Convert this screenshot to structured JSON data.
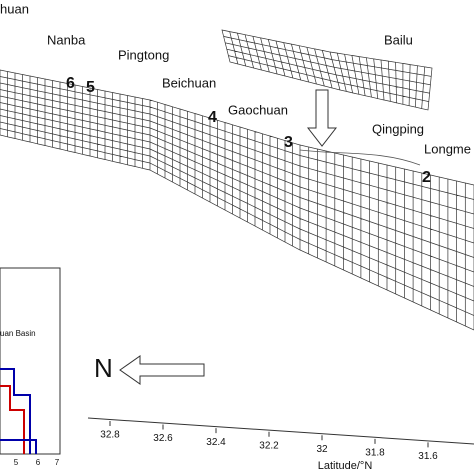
{
  "title_fragment": "huan",
  "fault_labels": [
    "Nanba",
    "Pingtong",
    "Beichuan",
    "Bailu",
    "Gaochuan",
    "Qingping",
    "Longme"
  ],
  "segment_numbers": [
    "6",
    "5",
    "4",
    "3",
    "2"
  ],
  "north_label": "N",
  "inset": {
    "label": "uan Basin",
    "x_ticks": [
      "5",
      "6",
      "7"
    ]
  },
  "axis": {
    "label": "Latitude/°N",
    "ticks": [
      "32.8",
      "32.6",
      "32.4",
      "32.2",
      "32",
      "31.8",
      "31.6"
    ]
  }
}
